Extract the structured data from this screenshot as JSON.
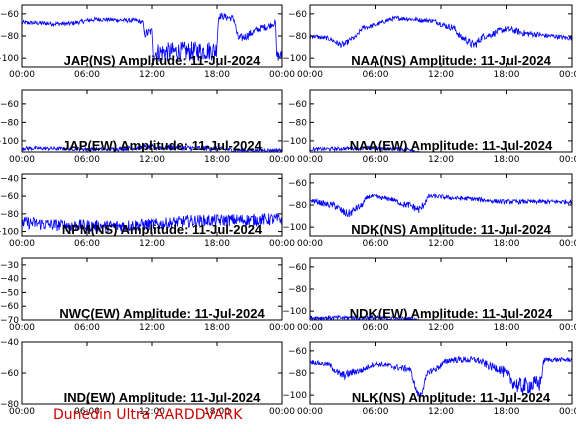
{
  "colors": {
    "trace": "#0000ff",
    "axes": "#000000",
    "background": "#ffffff",
    "credit": "#cc0000"
  },
  "credit": "Dunedin Ultra AARDDVARK",
  "chart_data": [
    {
      "type": "line",
      "name": "JAP(NS)",
      "title": "JAP(NS) Amplitude: 11-Jul-2024",
      "x_ticks": [
        "00:00",
        "06:00",
        "12:00",
        "18:00",
        "00:00"
      ],
      "y_ticks": [
        -60,
        -80,
        -100
      ],
      "ylim": [
        -108,
        -52
      ],
      "xlim_hours": [
        0,
        24
      ],
      "trace": [
        {
          "h": 0,
          "y": -68,
          "n": 2
        },
        {
          "h": 4,
          "y": -69,
          "n": 2
        },
        {
          "h": 7,
          "y": -65,
          "n": 2
        },
        {
          "h": 10.5,
          "y": -66,
          "n": 2
        },
        {
          "h": 11.2,
          "y": -68,
          "n": 2
        },
        {
          "h": 11.3,
          "y": -78,
          "n": 4
        },
        {
          "h": 12.0,
          "y": -76,
          "n": 4
        },
        {
          "h": 12.1,
          "y": -95,
          "n": 9
        },
        {
          "h": 15,
          "y": -94,
          "n": 9
        },
        {
          "h": 17.9,
          "y": -93,
          "n": 9
        },
        {
          "h": 18.2,
          "y": -62,
          "n": 3
        },
        {
          "h": 19.5,
          "y": -64,
          "n": 3
        },
        {
          "h": 20,
          "y": -82,
          "n": 4
        },
        {
          "h": 22.5,
          "y": -72,
          "n": 3
        },
        {
          "h": 23.4,
          "y": -68,
          "n": 3
        },
        {
          "h": 23.5,
          "y": -98,
          "n": 5
        },
        {
          "h": 24,
          "y": -98,
          "n": 5
        }
      ]
    },
    {
      "type": "line",
      "name": "NAA(NS)",
      "title": "NAA(NS) Amplitude: 11-Jul-2024",
      "x_ticks": [
        "00:00",
        "06:00",
        "12:00",
        "18:00",
        "00:00"
      ],
      "y_ticks": [
        -60,
        -80,
        -100
      ],
      "ylim": [
        -108,
        -52
      ],
      "xlim_hours": [
        0,
        24
      ],
      "trace": [
        {
          "h": 0,
          "y": -80,
          "n": 2
        },
        {
          "h": 1.5,
          "y": -82,
          "n": 2
        },
        {
          "h": 3,
          "y": -88,
          "n": 3
        },
        {
          "h": 4,
          "y": -82,
          "n": 2
        },
        {
          "h": 5,
          "y": -72,
          "n": 2
        },
        {
          "h": 8,
          "y": -64,
          "n": 2
        },
        {
          "h": 11,
          "y": -66,
          "n": 2
        },
        {
          "h": 13,
          "y": -72,
          "n": 3
        },
        {
          "h": 14,
          "y": -82,
          "n": 3
        },
        {
          "h": 15,
          "y": -88,
          "n": 4
        },
        {
          "h": 16,
          "y": -80,
          "n": 3
        },
        {
          "h": 18,
          "y": -74,
          "n": 3
        },
        {
          "h": 20,
          "y": -78,
          "n": 3
        },
        {
          "h": 22,
          "y": -80,
          "n": 2
        },
        {
          "h": 24,
          "y": -82,
          "n": 2
        }
      ]
    },
    {
      "type": "line",
      "name": "JAP(EW)",
      "title": "JAP(EW) Amplitude: 11-Jul-2024",
      "x_ticks": [
        "00:00",
        "06:00",
        "12:00",
        "18:00",
        "00:00"
      ],
      "y_ticks": [
        -60,
        -80,
        -100
      ],
      "ylim": [
        -112,
        -45
      ],
      "xlim_hours": [
        0,
        24
      ],
      "trace": [
        {
          "h": 0,
          "y": -108,
          "n": 2
        },
        {
          "h": 8,
          "y": -109,
          "n": 2
        },
        {
          "h": 12,
          "y": -107,
          "n": 3
        },
        {
          "h": 17,
          "y": -108,
          "n": 3
        },
        {
          "h": 20,
          "y": -110,
          "n": 2
        },
        {
          "h": 24,
          "y": -110,
          "n": 2
        }
      ]
    },
    {
      "type": "line",
      "name": "NAA(EW)",
      "title": "NAA(EW) Amplitude: 11-Jul-2024",
      "x_ticks": [
        "00:00",
        "06:00",
        "12:00",
        "18:00",
        "00:00"
      ],
      "y_ticks": [
        -60,
        -80,
        -100
      ],
      "ylim": [
        -112,
        -45
      ],
      "xlim_hours": [
        0,
        24
      ],
      "trace": [
        {
          "h": 0,
          "y": -109,
          "n": 2
        },
        {
          "h": 5,
          "y": -108,
          "n": 2
        },
        {
          "h": 9,
          "y": -109,
          "n": 2
        },
        {
          "h": 10,
          "y": -112,
          "n": 1
        }
      ]
    },
    {
      "type": "line",
      "name": "NPM(NS)",
      "title": "NPM(NS) Amplitude: 11-Jul-2024",
      "x_ticks": [
        "00:00",
        "06:00",
        "12:00",
        "18:00",
        "00:00"
      ],
      "y_ticks": [
        -40,
        -60,
        -80,
        -100
      ],
      "ylim": [
        -105,
        -35
      ],
      "xlim_hours": [
        0,
        24
      ],
      "trace": [
        {
          "h": 0,
          "y": -90,
          "n": 7
        },
        {
          "h": 4,
          "y": -93,
          "n": 7
        },
        {
          "h": 8,
          "y": -94,
          "n": 7
        },
        {
          "h": 12,
          "y": -92,
          "n": 7
        },
        {
          "h": 16,
          "y": -88,
          "n": 7
        },
        {
          "h": 20,
          "y": -87,
          "n": 7
        },
        {
          "h": 24,
          "y": -86,
          "n": 7
        }
      ]
    },
    {
      "type": "line",
      "name": "NDK(NS)",
      "title": "NDK(NS) Amplitude: 11-Jul-2024",
      "x_ticks": [
        "00:00",
        "06:00",
        "12:00",
        "18:00",
        "00:00"
      ],
      "y_ticks": [
        -60,
        -80,
        -100
      ],
      "ylim": [
        -108,
        -52
      ],
      "xlim_hours": [
        0,
        24
      ],
      "trace": [
        {
          "h": 0,
          "y": -76,
          "n": 2
        },
        {
          "h": 2,
          "y": -80,
          "n": 3
        },
        {
          "h": 3.5,
          "y": -88,
          "n": 4
        },
        {
          "h": 4.5,
          "y": -82,
          "n": 3
        },
        {
          "h": 5.5,
          "y": -72,
          "n": 2
        },
        {
          "h": 7,
          "y": -74,
          "n": 2
        },
        {
          "h": 9,
          "y": -80,
          "n": 3
        },
        {
          "h": 10,
          "y": -84,
          "n": 4
        },
        {
          "h": 11,
          "y": -72,
          "n": 2
        },
        {
          "h": 14,
          "y": -74,
          "n": 2
        },
        {
          "h": 18,
          "y": -77,
          "n": 2
        },
        {
          "h": 24,
          "y": -77,
          "n": 2
        }
      ]
    },
    {
      "type": "line",
      "name": "NWC(EW)",
      "title": "NWC(EW) Amplitude: 11-Jul-2024",
      "x_ticks": [
        "00:00",
        "06:00",
        "12:00",
        "18:00",
        "00:00"
      ],
      "y_ticks": [
        -30,
        -40,
        -50,
        -60,
        -70
      ],
      "ylim": [
        -70,
        -25
      ],
      "xlim_hours": [
        0,
        24
      ],
      "trace": []
    },
    {
      "type": "line",
      "name": "NDK(EW)",
      "title": "NDK(EW) Amplitude: 11-Jul-2024",
      "x_ticks": [
        "00:00",
        "06:00",
        "12:00",
        "18:00",
        "00:00"
      ],
      "y_ticks": [
        -60,
        -80,
        -100
      ],
      "ylim": [
        -108,
        -52
      ],
      "xlim_hours": [
        0,
        24
      ],
      "trace": [
        {
          "h": 0,
          "y": -106,
          "n": 2
        },
        {
          "h": 5,
          "y": -106,
          "n": 2
        },
        {
          "h": 9,
          "y": -107,
          "n": 2
        },
        {
          "h": 10,
          "y": -108,
          "n": 1
        }
      ]
    },
    {
      "type": "line",
      "name": "IND(EW)",
      "title": "IND(EW) Amplitude: 11-Jul-2024",
      "x_ticks": [
        "00:00",
        "06:00",
        "12:00",
        "18:00",
        "00:00"
      ],
      "y_ticks": [
        -40,
        -60,
        -80
      ],
      "ylim": [
        -80,
        -40
      ],
      "xlim_hours": [
        0,
        24
      ],
      "trace": []
    },
    {
      "type": "line",
      "name": "NLK(NS)",
      "title": "NLK(NS) Amplitude: 11-Jul-2024",
      "x_ticks": [
        "00:00",
        "06:00",
        "12:00",
        "18:00",
        "00:00"
      ],
      "y_ticks": [
        -60,
        -80,
        -100
      ],
      "ylim": [
        -108,
        -52
      ],
      "xlim_hours": [
        0,
        24
      ],
      "trace": [
        {
          "h": 0,
          "y": -70,
          "n": 2
        },
        {
          "h": 1.5,
          "y": -72,
          "n": 2
        },
        {
          "h": 3,
          "y": -82,
          "n": 4
        },
        {
          "h": 4.5,
          "y": -78,
          "n": 3
        },
        {
          "h": 6,
          "y": -72,
          "n": 2
        },
        {
          "h": 9,
          "y": -76,
          "n": 3
        },
        {
          "h": 10,
          "y": -100,
          "n": 3
        },
        {
          "h": 11,
          "y": -78,
          "n": 3
        },
        {
          "h": 13,
          "y": -68,
          "n": 3
        },
        {
          "h": 15,
          "y": -68,
          "n": 3
        },
        {
          "h": 17,
          "y": -75,
          "n": 4
        },
        {
          "h": 19.3,
          "y": -92,
          "n": 8
        },
        {
          "h": 21,
          "y": -90,
          "n": 8
        },
        {
          "h": 21.5,
          "y": -68,
          "n": 2
        },
        {
          "h": 24,
          "y": -68,
          "n": 2
        }
      ]
    }
  ]
}
